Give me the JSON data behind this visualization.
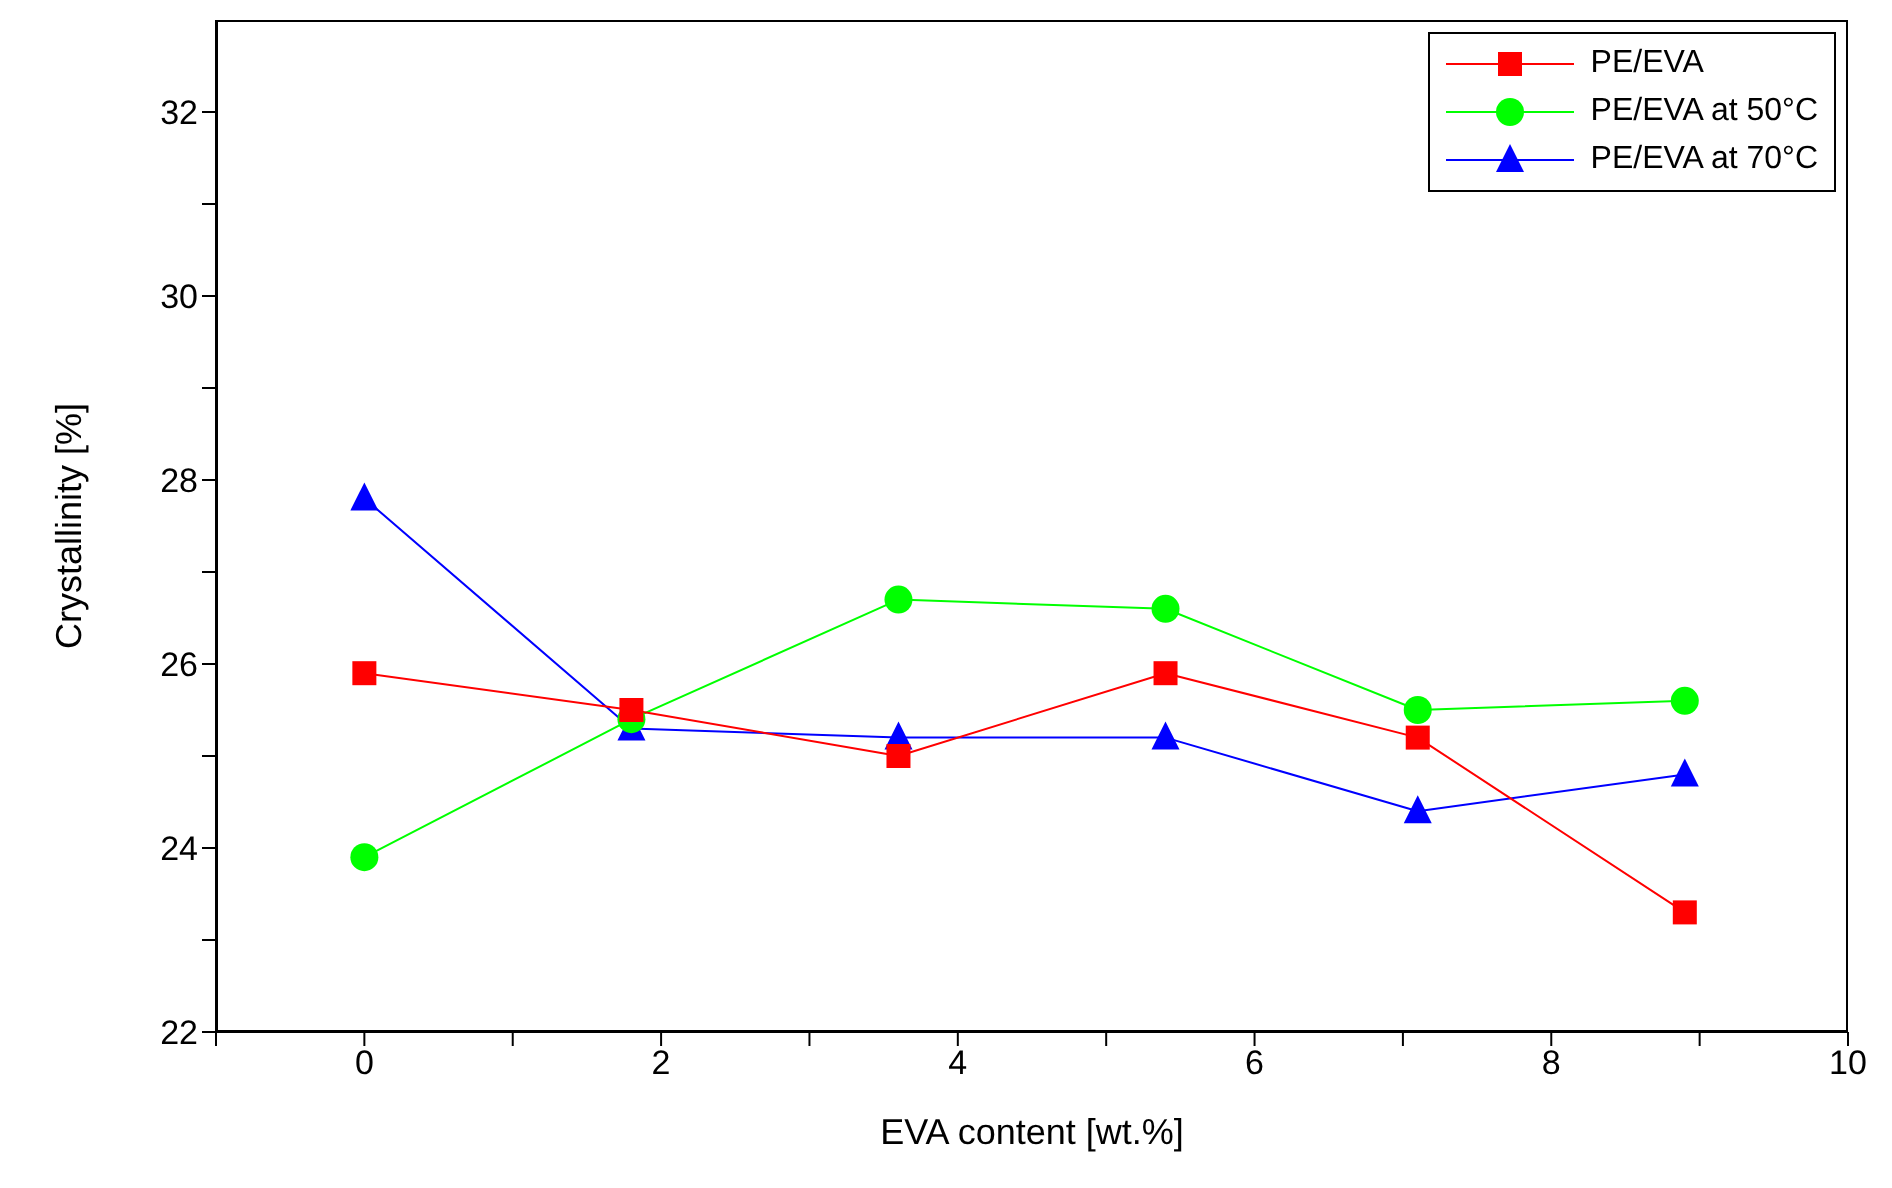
{
  "chart_data": {
    "type": "line",
    "xlabel": "EVA content [wt.%]",
    "ylabel": "Crystallinity [%]",
    "x": [
      0,
      1.8,
      3.6,
      5.4,
      7.1,
      8.9
    ],
    "series": [
      {
        "name": "PE/EVA",
        "color": "#ff0000",
        "marker": "square",
        "values": [
          25.9,
          25.5,
          25.0,
          25.9,
          25.2,
          23.3
        ]
      },
      {
        "name": "PE/EVA at 50°C",
        "color": "#00ff00",
        "marker": "circle",
        "values": [
          23.9,
          25.4,
          26.7,
          26.6,
          25.5,
          25.6
        ]
      },
      {
        "name": "PE/EVA at 70°C",
        "color": "#0000ff",
        "marker": "triangle",
        "values": [
          27.8,
          25.3,
          25.2,
          25.2,
          24.4,
          24.8
        ]
      }
    ],
    "xlim": [
      -1,
      10
    ],
    "xticks": [
      {
        "value": -1,
        "label": null
      },
      0,
      {
        "value": 1,
        "label": null
      },
      2,
      {
        "value": 3,
        "label": null
      },
      4,
      {
        "value": 5,
        "label": null
      },
      6,
      {
        "value": 7,
        "label": null
      },
      8,
      {
        "value": 9,
        "label": null
      },
      10
    ],
    "ylim": [
      22,
      33
    ],
    "yticks": [
      22,
      {
        "value": 23,
        "label": null
      },
      24,
      {
        "value": 25,
        "label": null
      },
      26,
      {
        "value": 27,
        "label": null
      },
      28,
      {
        "value": 29,
        "label": null
      },
      30,
      {
        "value": 31,
        "label": null
      },
      32
    ],
    "grid": false,
    "legend": "top right",
    "line_style": "solid"
  }
}
